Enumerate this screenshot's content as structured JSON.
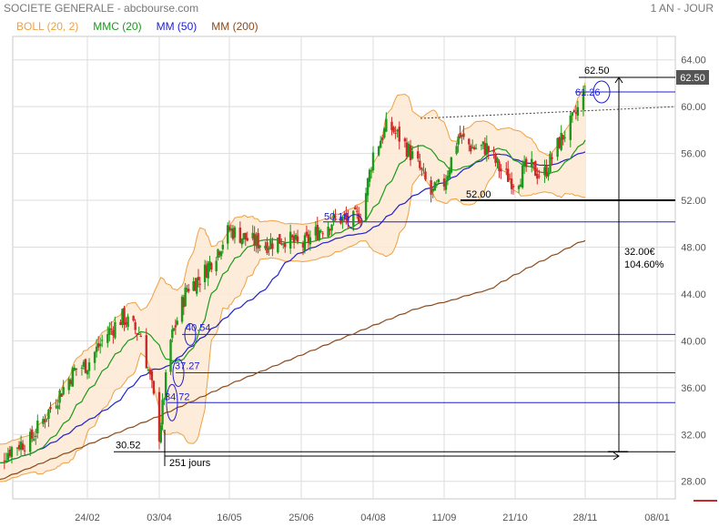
{
  "header": {
    "title": "SOCIETE GENERALE - abcbourse.com",
    "period": "1 AN - JOUR"
  },
  "legend": [
    {
      "label": "BOLL (20, 2)",
      "color": "#f0a040"
    },
    {
      "label": "MMC (20)",
      "color": "#1a9a1a"
    },
    {
      "label": "MM (50)",
      "color": "#2020d0"
    },
    {
      "label": "MM (200)",
      "color": "#8b4a1a"
    }
  ],
  "chart_data": {
    "type": "line",
    "title": "SOCIETE GENERALE - abcbourse.com",
    "xlabel": "",
    "ylabel": "",
    "ylim": [
      26.5,
      66
    ],
    "y_ticks": [
      "28.00",
      "32.00",
      "36.00",
      "40.00",
      "44.00",
      "48.00",
      "52.00",
      "56.00",
      "60.00",
      "64.00"
    ],
    "x_ticks": [
      "24/02",
      "03/04",
      "16/05",
      "25/06",
      "04/08",
      "11/09",
      "21/10",
      "28/11",
      "08/01"
    ],
    "grid": true,
    "candles_close_approx": [
      {
        "x": "02/01",
        "y": 29.0
      },
      {
        "x": "15/01",
        "y": 31.0
      },
      {
        "x": "24/01",
        "y": 31.5
      },
      {
        "x": "05/02",
        "y": 34.5
      },
      {
        "x": "17/02",
        "y": 37.5
      },
      {
        "x": "24/02",
        "y": 38.0
      },
      {
        "x": "05/03",
        "y": 40.5
      },
      {
        "x": "14/03",
        "y": 42.0
      },
      {
        "x": "24/03",
        "y": 40.5
      },
      {
        "x": "30/03",
        "y": 36.0
      },
      {
        "x": "03/04",
        "y": 32.0
      },
      {
        "x": "10/04",
        "y": 40.0
      },
      {
        "x": "20/04",
        "y": 44.5
      },
      {
        "x": "29/04",
        "y": 45.5
      },
      {
        "x": "10/05",
        "y": 48.0
      },
      {
        "x": "16/05",
        "y": 49.5
      },
      {
        "x": "28/05",
        "y": 48.5
      },
      {
        "x": "06/06",
        "y": 48.3
      },
      {
        "x": "17/06",
        "y": 48.8
      },
      {
        "x": "25/06",
        "y": 48.0
      },
      {
        "x": "05/07",
        "y": 49.5
      },
      {
        "x": "15/07",
        "y": 50.5
      },
      {
        "x": "23/07",
        "y": 50.2
      },
      {
        "x": "29/07",
        "y": 51.0
      },
      {
        "x": "04/08",
        "y": 56.0
      },
      {
        "x": "12/08",
        "y": 58.5
      },
      {
        "x": "20/08",
        "y": 57.0
      },
      {
        "x": "28/08",
        "y": 55.0
      },
      {
        "x": "04/09",
        "y": 52.5
      },
      {
        "x": "11/09",
        "y": 53.5
      },
      {
        "x": "19/09",
        "y": 57.5
      },
      {
        "x": "27/09",
        "y": 56.5
      },
      {
        "x": "05/10",
        "y": 56.5
      },
      {
        "x": "13/10",
        "y": 54.5
      },
      {
        "x": "21/10",
        "y": 53.5
      },
      {
        "x": "28/10",
        "y": 55.0
      },
      {
        "x": "05/11",
        "y": 54.0
      },
      {
        "x": "14/11",
        "y": 57.0
      },
      {
        "x": "22/11",
        "y": 59.0
      },
      {
        "x": "28/11",
        "y": 61.26
      }
    ],
    "annotations": {
      "horizontal_levels": [
        {
          "label": "62.50",
          "value": 62.5
        },
        {
          "label": "61.26",
          "value": 61.26
        },
        {
          "label": "52.00",
          "value": 52.0
        },
        {
          "label": "50.16",
          "value": 50.16
        },
        {
          "label": "40.54",
          "value": 40.54
        },
        {
          "label": "37.27",
          "value": 37.27
        },
        {
          "label": "34.72",
          "value": 34.72
        },
        {
          "label": "30.52",
          "value": 30.52
        }
      ],
      "price_tag": "62.50",
      "range_label": "32.00€",
      "range_pct": "104.60%",
      "duration_label": "251 jours"
    }
  }
}
